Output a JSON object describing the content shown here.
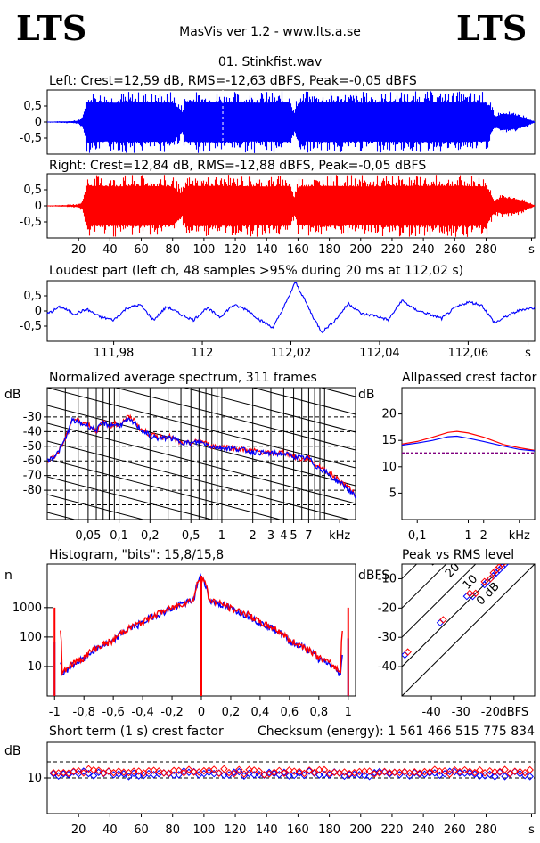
{
  "header": {
    "logo_left": "LTS",
    "logo_right": "LTS",
    "app_title": "MasVis ver 1.2 - www.lts.a.se",
    "file_name": "01. Stinkfist.wav"
  },
  "colors": {
    "left": "#0000ff",
    "right": "#ff0000",
    "grid": "#000000"
  },
  "chart_data": [
    {
      "id": "left_waveform",
      "type": "area",
      "title": "Left: Crest=12,59 dB, RMS=-12,63 dBFS, Peak=-0,05 dBFS",
      "channel": "left",
      "ylim": [
        -1,
        1
      ],
      "y_ticks": [
        "0,5",
        "0",
        "-0,5"
      ],
      "y_tick_values": [
        0.5,
        0,
        -0.5
      ],
      "xlim": [
        0,
        311
      ],
      "marker_x": 112.02,
      "envelope": {
        "x": [
          0,
          10,
          18,
          22,
          25,
          30,
          40,
          60,
          80,
          86,
          88,
          90,
          110,
          140,
          155,
          157,
          160,
          180,
          200,
          230,
          260,
          280,
          285,
          290,
          300,
          311
        ],
        "peak": [
          0.02,
          0.03,
          0.06,
          0.15,
          0.97,
          0.97,
          0.97,
          0.97,
          0.97,
          0.55,
          0.97,
          0.97,
          0.97,
          0.97,
          0.97,
          0.45,
          0.97,
          0.97,
          0.97,
          0.97,
          0.97,
          0.97,
          0.3,
          0.35,
          0.3,
          0.02
        ],
        "body": [
          0.01,
          0.02,
          0.03,
          0.08,
          0.62,
          0.62,
          0.6,
          0.62,
          0.6,
          0.3,
          0.6,
          0.62,
          0.62,
          0.6,
          0.62,
          0.2,
          0.6,
          0.62,
          0.6,
          0.62,
          0.62,
          0.6,
          0.15,
          0.25,
          0.2,
          0.01
        ]
      }
    },
    {
      "id": "right_waveform",
      "type": "area",
      "title": "Right: Crest=12,84 dB, RMS=-12,88 dBFS, Peak=-0,05 dBFS",
      "channel": "right",
      "ylim": [
        -1,
        1
      ],
      "y_ticks": [
        "0,5",
        "0",
        "-0,5"
      ],
      "y_tick_values": [
        0.5,
        0,
        -0.5
      ],
      "xlim": [
        0,
        311
      ],
      "x_ticks": [
        "20",
        "40",
        "60",
        "80",
        "100",
        "120",
        "140",
        "160",
        "180",
        "200",
        "220",
        "240",
        "260",
        "280",
        "s"
      ],
      "x_tick_values": [
        20,
        40,
        60,
        80,
        100,
        120,
        140,
        160,
        180,
        200,
        220,
        240,
        260,
        280,
        309
      ],
      "envelope": {
        "x": [
          0,
          10,
          18,
          22,
          25,
          30,
          40,
          60,
          80,
          86,
          88,
          90,
          110,
          140,
          155,
          157,
          160,
          180,
          200,
          230,
          260,
          280,
          285,
          290,
          300,
          311
        ],
        "peak": [
          0.02,
          0.03,
          0.06,
          0.15,
          0.97,
          0.97,
          0.97,
          0.97,
          0.97,
          0.55,
          0.97,
          0.97,
          0.97,
          0.97,
          0.97,
          0.45,
          0.97,
          0.97,
          0.97,
          0.97,
          0.97,
          0.97,
          0.3,
          0.35,
          0.3,
          0.02
        ],
        "body": [
          0.01,
          0.02,
          0.03,
          0.08,
          0.62,
          0.62,
          0.6,
          0.62,
          0.6,
          0.3,
          0.6,
          0.62,
          0.62,
          0.6,
          0.62,
          0.2,
          0.6,
          0.62,
          0.6,
          0.62,
          0.62,
          0.6,
          0.15,
          0.25,
          0.2,
          0.01
        ]
      }
    },
    {
      "id": "loudest_part",
      "type": "line",
      "title": "Loudest part (left  ch, 48 samples >95% during 20 ms at 112,02 s)",
      "ylim": [
        -1,
        1
      ],
      "y_ticks": [
        "0,5",
        "0",
        "-0,5"
      ],
      "y_tick_values": [
        0.5,
        0,
        -0.5
      ],
      "xlim": [
        111.965,
        112.075
      ],
      "x_ticks": [
        "111,98",
        "112",
        "112,02",
        "112,04",
        "112,06",
        "s"
      ],
      "x_tick_values": [
        111.98,
        112.0,
        112.02,
        112.04,
        112.06,
        112.0735
      ],
      "series": [
        {
          "x": [
            111.965,
            111.968,
            111.971,
            111.974,
            111.977,
            111.98,
            111.983,
            111.986,
            111.989,
            111.992,
            111.995,
            111.998,
            112.001,
            112.004,
            112.007,
            112.01,
            112.013,
            112.016,
            112.019,
            112.021,
            112.023,
            112.025,
            112.027,
            112.03,
            112.033,
            112.036,
            112.039,
            112.042,
            112.045,
            112.048,
            112.051,
            112.054,
            112.057,
            112.06,
            112.063,
            112.066,
            112.069,
            112.072,
            112.075
          ],
          "y": [
            -0.1,
            0.15,
            -0.1,
            0.05,
            -0.2,
            -0.3,
            0.1,
            0.2,
            -0.3,
            0.15,
            -0.1,
            -0.3,
            0.1,
            -0.2,
            0.2,
            0.05,
            -0.3,
            -0.55,
            0.3,
            0.95,
            0.4,
            -0.2,
            -0.7,
            -0.3,
            0.25,
            -0.1,
            -0.15,
            -0.3,
            0.35,
            0.05,
            -0.1,
            -0.25,
            0.1,
            0.3,
            0.2,
            -0.4,
            -0.15,
            0.05,
            0.1
          ]
        }
      ]
    },
    {
      "id": "spectrum",
      "type": "line",
      "title": "Normalized average spectrum, 311 frames",
      "ylabel": "dB",
      "xlabel": "kHz",
      "x_scale": "log",
      "ylim": [
        -100,
        -10
      ],
      "xlim": [
        0.02,
        20
      ],
      "y_ticks": [
        "-30",
        "-40",
        "-50",
        "-60",
        "-70",
        "-80"
      ],
      "y_tick_values": [
        -30,
        -40,
        -50,
        -60,
        -70,
        -80
      ],
      "x_ticks": [
        "0,05",
        "0,1",
        "0,2",
        "0,5",
        "1",
        "2",
        "3",
        "4",
        "5",
        "7",
        "kHz"
      ],
      "x_tick_values": [
        0.05,
        0.1,
        0.2,
        0.5,
        1,
        2,
        3,
        4,
        5,
        7,
        14
      ],
      "series": [
        {
          "channel": "right",
          "x": [
            0.02,
            0.025,
            0.03,
            0.035,
            0.04,
            0.05,
            0.06,
            0.07,
            0.08,
            0.09,
            0.1,
            0.12,
            0.14,
            0.16,
            0.2,
            0.25,
            0.3,
            0.4,
            0.5,
            0.6,
            0.8,
            1,
            1.5,
            2,
            3,
            4,
            5,
            6,
            7,
            8,
            10,
            12,
            15,
            20
          ],
          "y": [
            -60,
            -55,
            -45,
            -31,
            -33,
            -35,
            -40,
            -33,
            -37,
            -34,
            -36,
            -30,
            -32,
            -38,
            -42,
            -44,
            -43,
            -48,
            -48,
            -46,
            -50,
            -50,
            -52,
            -53,
            -55,
            -54,
            -57,
            -59,
            -58,
            -62,
            -66,
            -70,
            -75,
            -83
          ]
        },
        {
          "channel": "left",
          "x": [
            0.02,
            0.025,
            0.03,
            0.035,
            0.04,
            0.05,
            0.06,
            0.07,
            0.08,
            0.09,
            0.1,
            0.12,
            0.14,
            0.16,
            0.2,
            0.25,
            0.3,
            0.4,
            0.5,
            0.6,
            0.8,
            1,
            1.5,
            2,
            3,
            4,
            5,
            6,
            7,
            8,
            10,
            12,
            15,
            20
          ],
          "y": [
            -60,
            -55,
            -45,
            -32,
            -34,
            -36,
            -39,
            -34,
            -36,
            -35,
            -36,
            -32,
            -34,
            -38,
            -43,
            -45,
            -44,
            -47,
            -48,
            -47,
            -50,
            -51,
            -52,
            -54,
            -55,
            -55,
            -57,
            -58,
            -58,
            -63,
            -67,
            -72,
            -76,
            -85
          ]
        }
      ]
    },
    {
      "id": "allpassed_crest",
      "type": "line",
      "title": "Allpassed crest factor",
      "ylabel": "dB",
      "xlabel": "kHz",
      "x_scale": "log",
      "ylim": [
        0,
        25
      ],
      "xlim": [
        0.05,
        20
      ],
      "y_ticks": [
        "20",
        "15",
        "10",
        "5"
      ],
      "y_tick_values": [
        20,
        15,
        10,
        5
      ],
      "x_ticks": [
        "0,1",
        "1",
        "2",
        "kHz"
      ],
      "x_tick_values": [
        0.1,
        1,
        2,
        10
      ],
      "reference_line": 12.6,
      "series": [
        {
          "channel": "right",
          "x": [
            0.05,
            0.1,
            0.2,
            0.4,
            0.6,
            1,
            2,
            5,
            10,
            20
          ],
          "y": [
            14.3,
            14.8,
            15.6,
            16.5,
            16.7,
            16.4,
            15.6,
            14.2,
            13.6,
            13.1
          ]
        },
        {
          "channel": "left",
          "x": [
            0.05,
            0.1,
            0.2,
            0.4,
            0.6,
            1,
            2,
            5,
            10,
            20
          ],
          "y": [
            14.1,
            14.5,
            15.0,
            15.7,
            15.8,
            15.4,
            14.8,
            13.9,
            13.3,
            13.0
          ]
        }
      ]
    },
    {
      "id": "histogram",
      "type": "bar",
      "title": "Histogram, \"bits\": 15,8/15,8",
      "ylabel": "n",
      "y_scale": "log",
      "ylim": [
        1,
        30000
      ],
      "xlim": [
        -1.05,
        1.05
      ],
      "y_ticks": [
        "1000",
        "100",
        "10"
      ],
      "y_tick_values": [
        1000,
        100,
        10
      ],
      "x_ticks": [
        "-1",
        "-0,8",
        "-0,6",
        "-0,4",
        "-0,2",
        "0",
        "0,2",
        "0,4",
        "0,6",
        "0,8",
        "1"
      ],
      "x_tick_values": [
        -1,
        -0.8,
        -0.6,
        -0.4,
        -0.2,
        0,
        0.2,
        0.4,
        0.6,
        0.8,
        1
      ],
      "series": [
        {
          "channel": "left",
          "x": [
            -1,
            -0.95,
            -0.8,
            -0.6,
            -0.4,
            -0.2,
            -0.05,
            0,
            0.05,
            0.2,
            0.4,
            0.6,
            0.8,
            0.95,
            1
          ],
          "y": [
            70,
            5,
            18,
            70,
            300,
            900,
            1800,
            12000,
            1800,
            900,
            300,
            70,
            18,
            5,
            90
          ]
        },
        {
          "channel": "right",
          "x": [
            -1,
            -0.95,
            -0.8,
            -0.6,
            -0.4,
            -0.2,
            -0.05,
            0,
            0.05,
            0.2,
            0.4,
            0.6,
            0.8,
            0.95,
            1
          ],
          "y": [
            1000,
            6,
            20,
            75,
            310,
            950,
            1900,
            12000,
            1900,
            950,
            310,
            75,
            20,
            6,
            1000
          ]
        }
      ]
    },
    {
      "id": "peak_vs_rms",
      "type": "scatter",
      "title": "Peak vs RMS level",
      "ylabel": "dBFS",
      "xlabel": "dBFS",
      "xlim": [
        -50,
        -5
      ],
      "ylim": [
        -50,
        -5
      ],
      "y_ticks": [
        "-10",
        "-20",
        "-30",
        "-40"
      ],
      "y_tick_values": [
        -10,
        -20,
        -30,
        -40
      ],
      "x_ticks": [
        "-40",
        "-30",
        "-20",
        "dBFS"
      ],
      "x_tick_values": [
        -40,
        -30,
        -20,
        -12
      ],
      "crest_labels": [
        "40",
        "30",
        "20",
        "10",
        "0 dB"
      ],
      "crest_values": [
        40,
        30,
        20,
        10,
        0
      ],
      "series": [
        {
          "channel": "left",
          "x": [
            -49,
            -37,
            -28,
            -26,
            -22,
            -21,
            -19,
            -18,
            -17,
            -16,
            -15,
            -14,
            -13,
            -12,
            -11
          ],
          "y": [
            -36,
            -25,
            -16,
            -16,
            -12,
            -11,
            -9,
            -8,
            -7,
            -6,
            -5,
            -4,
            -3,
            -2,
            -1
          ]
        },
        {
          "channel": "right",
          "x": [
            -48,
            -36,
            -27,
            -25,
            -22,
            -20,
            -19,
            -18,
            -17,
            -16,
            -15,
            -14,
            -13,
            -12,
            -11
          ],
          "y": [
            -35,
            -24,
            -15,
            -15,
            -11,
            -10,
            -8,
            -7,
            -6,
            -5,
            -4,
            -3,
            -2,
            -1,
            -1
          ]
        }
      ]
    },
    {
      "id": "short_term_crest",
      "type": "scatter",
      "title": "Short term (1 s) crest factor",
      "checksum": "Checksum (energy):  1 561 466 515 775 834",
      "ylabel": "dB",
      "ylim": [
        0,
        20
      ],
      "xlim": [
        0,
        311
      ],
      "y_ticks": [
        "10"
      ],
      "y_tick_values": [
        10
      ],
      "reference_lines": [
        10,
        14.5
      ],
      "x_ticks": [
        "20",
        "40",
        "60",
        "80",
        "100",
        "120",
        "140",
        "160",
        "180",
        "200",
        "220",
        "240",
        "260",
        "280",
        "s"
      ],
      "x_tick_values": [
        20,
        40,
        60,
        80,
        100,
        120,
        140,
        160,
        180,
        200,
        220,
        240,
        260,
        280,
        309
      ],
      "series": [
        {
          "channel": "left",
          "x": [
            5,
            20,
            40,
            60,
            80,
            100,
            120,
            140,
            160,
            180,
            200,
            220,
            240,
            260,
            280,
            300
          ],
          "y": [
            11.0,
            11.4,
            11.2,
            11.0,
            11.3,
            11.6,
            11.1,
            11.0,
            11.4,
            11.2,
            11.0,
            11.3,
            11.1,
            11.2,
            11.0,
            11.1
          ]
        },
        {
          "channel": "right",
          "x": [
            5,
            20,
            40,
            60,
            80,
            100,
            120,
            140,
            160,
            180,
            200,
            220,
            240,
            260,
            280,
            300
          ],
          "y": [
            11.5,
            12.0,
            11.8,
            11.6,
            11.9,
            12.1,
            11.7,
            11.6,
            11.9,
            11.8,
            11.6,
            11.9,
            11.7,
            11.8,
            11.6,
            11.7
          ]
        }
      ]
    }
  ]
}
